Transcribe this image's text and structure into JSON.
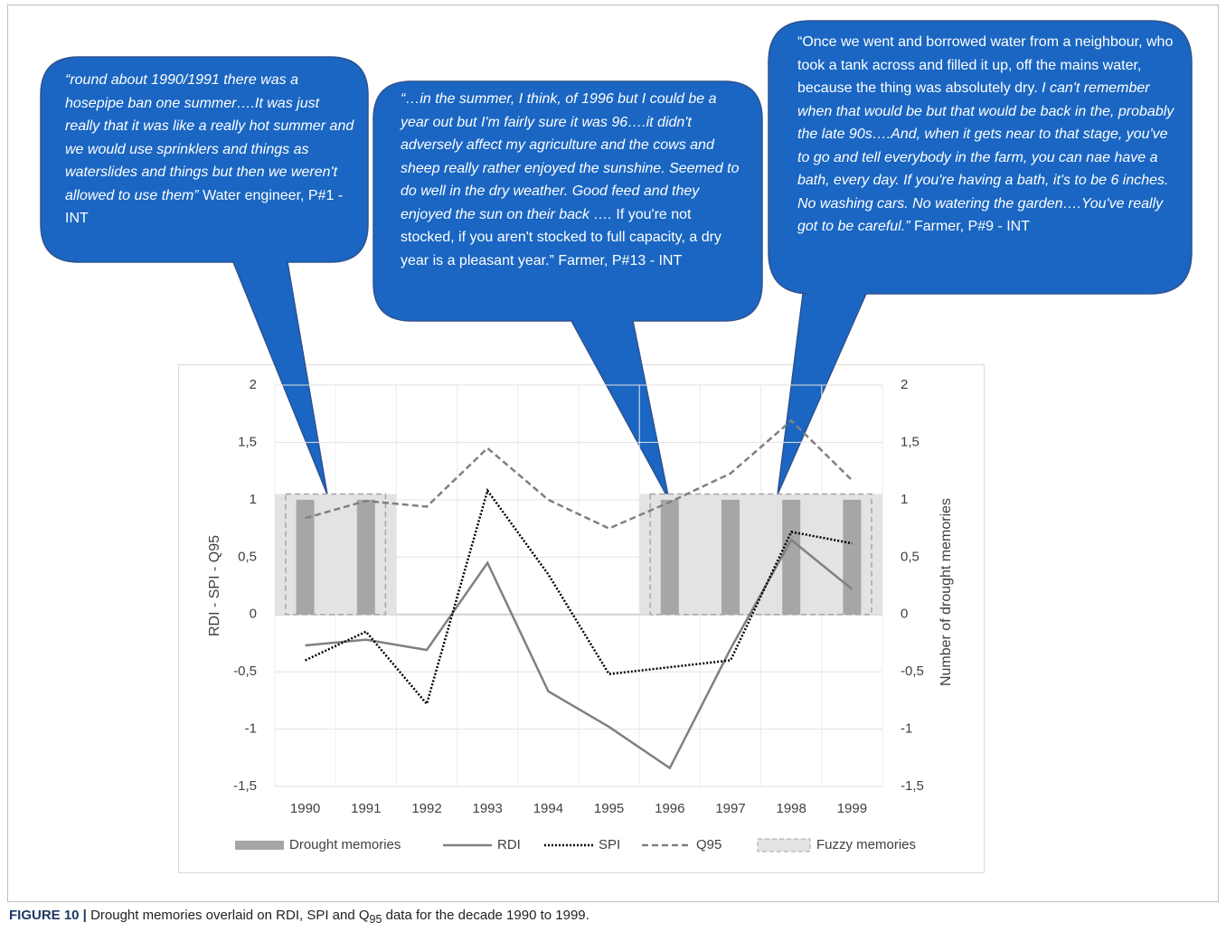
{
  "bubbles": [
    {
      "segments": [
        {
          "text": "“round about 1990/1991 there was a hosepipe ban one summer….It was just really that it was like a really hot summer and we would use sprinklers and things as waterslides and things but then we weren't allowed to use them”",
          "italic": true
        },
        {
          "text": "Water engineer, P#1 - INT",
          "italic": false
        }
      ]
    },
    {
      "segments": [
        {
          "text": "“…in the summer, I think, of 1996 but I could be a year out but I'm fairly sure it was 96….it didn't adversely affect my agriculture and the cows and sheep really rather enjoyed the sunshine. Seemed to do well in the dry weather. Good feed and they enjoyed the sun on their back ….",
          "italic": true
        },
        {
          "text": "If you're not stocked, if you aren't stocked to full capacity, a dry year is a pleasant year.” Farmer, P#13 - INT",
          "italic": false
        }
      ]
    },
    {
      "segments": [
        {
          "text": "“Once we went and borrowed water from a neighbour, who took a tank across and filled it up, off the mains water, because the thing was absolutely dry.",
          "italic": false
        },
        {
          "text": "I can't remember when that would be but that would be back in the, probably the late 90s….And, when it gets near to that stage, you've to go and tell everybody in the farm, you can nae have a bath, every day. If you're having a bath, it's to be 6 inches. No washing cars. No watering the garden….You've really got to be careful.”",
          "italic": true
        },
        {
          "text": "Farmer, P#9 - INT",
          "italic": false
        }
      ]
    }
  ],
  "chart_data": {
    "type": "combo",
    "y_label": "RDI - SPI - Q95",
    "y2_label": "Number of drought memories",
    "categories": [
      "1990",
      "1991",
      "1992",
      "1993",
      "1994",
      "1995",
      "1996",
      "1997",
      "1998",
      "1999"
    ],
    "ylim": [
      -1.5,
      2
    ],
    "yticks": [
      {
        "value": -1.5,
        "label": "-1,5"
      },
      -1,
      {
        "value": -0.5,
        "label": "-0,5"
      },
      0,
      {
        "value": 0.5,
        "label": "0,5"
      },
      1,
      {
        "value": 1.5,
        "label": "1,5"
      },
      2
    ],
    "y2lim": [
      -1.5,
      2
    ],
    "y2ticks": [
      {
        "value": -1.5,
        "label": "-1,5"
      },
      -1,
      {
        "value": -0.5,
        "label": "-0,5"
      },
      0,
      {
        "value": 0.5,
        "label": "0,5"
      },
      1,
      {
        "value": 1.5,
        "label": "1,5"
      },
      2
    ],
    "grid": true,
    "legend": "bottom",
    "series": [
      {
        "name": "Drought memories",
        "type": "bar",
        "axis": "y2",
        "color": "#a6a6a6",
        "values": [
          1,
          1,
          0,
          0,
          0,
          0,
          1,
          1,
          1,
          1
        ]
      },
      {
        "name": "RDI",
        "type": "line",
        "dash": "solid",
        "color": "#808080",
        "values": [
          -0.27,
          -0.22,
          -0.31,
          0.45,
          -0.67,
          -0.98,
          -1.34,
          -0.3,
          0.65,
          0.22
        ]
      },
      {
        "name": "SPI",
        "type": "line",
        "dash": "dotted",
        "color": "#000000",
        "values": [
          -0.4,
          -0.15,
          -0.78,
          1.08,
          0.35,
          -0.52,
          -0.46,
          -0.4,
          0.72,
          0.62
        ]
      },
      {
        "name": "Q95",
        "type": "line",
        "dash": "dashed",
        "color": "#808080",
        "values": [
          0.84,
          0.99,
          0.94,
          1.45,
          1.0,
          0.75,
          0.98,
          1.23,
          1.69,
          1.17
        ]
      },
      {
        "name": "Fuzzy memories",
        "type": "box",
        "axis": "y2",
        "color": "#e3e3e3",
        "values": [
          1.05,
          1.05,
          null,
          null,
          null,
          null,
          1.05,
          1.05,
          1.05,
          1.05
        ]
      }
    ]
  },
  "caption": {
    "label": "FIGURE 10 |",
    "text": "Drought memories overlaid on RDI, SPI and Q",
    "subscript": "95",
    "text_end": "data for the decade 1990 to 1999."
  }
}
